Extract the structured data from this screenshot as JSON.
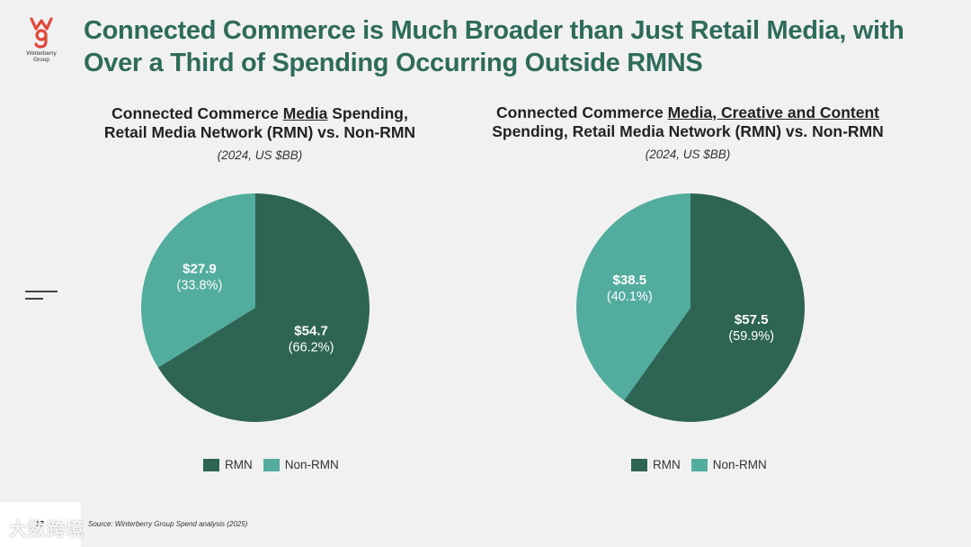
{
  "logo": {
    "mark": "wg",
    "name": "Winterberry Group",
    "name_line1": "Winterberry",
    "name_line2": "Group"
  },
  "title_line1": "Connected Commerce is Much Broader than Just Retail Media, with",
  "title_line2": "Over a Third of Spending Occurring Outside RMNS",
  "colors": {
    "rmn": "#2d6454",
    "non_rmn": "#52ad9f",
    "title": "#2f6b5a",
    "background": "#f1f1f1"
  },
  "chart_data": [
    {
      "type": "pie",
      "title_line1_pre": "Connected Commerce ",
      "title_line1_u": "Media",
      "title_line1_post": " Spending,",
      "title_line2": "Retail Media Network (RMN) vs. Non-RMN",
      "subtitle": "(2024, US $BB)",
      "slices": [
        {
          "name": "RMN",
          "value": 54.7,
          "value_label": "$54.7",
          "pct_label": "(66.2%)"
        },
        {
          "name": "Non-RMN",
          "value": 27.9,
          "value_label": "$27.9",
          "pct_label": "(33.8%)"
        }
      ],
      "legend": [
        "RMN",
        "Non-RMN"
      ]
    },
    {
      "type": "pie",
      "title_line1_pre": "Connected Commerce ",
      "title_line1_u": "Media, Creative and Content",
      "title_line1_post": "",
      "title_line2": "Spending, Retail Media Network (RMN) vs. Non-RMN",
      "subtitle": "(2024, US $BB)",
      "slices": [
        {
          "name": "RMN",
          "value": 57.5,
          "value_label": "$57.5",
          "pct_label": "(59.9%)"
        },
        {
          "name": "Non-RMN",
          "value": 38.5,
          "value_label": "$38.5",
          "pct_label": "(40.1%)"
        }
      ],
      "legend": [
        "RMN",
        "Non-RMN"
      ]
    }
  ],
  "footer": {
    "page_number": "27",
    "source": "Source: Winterberry Group Spend analysis (2025)",
    "watermark": "大数跨境"
  }
}
